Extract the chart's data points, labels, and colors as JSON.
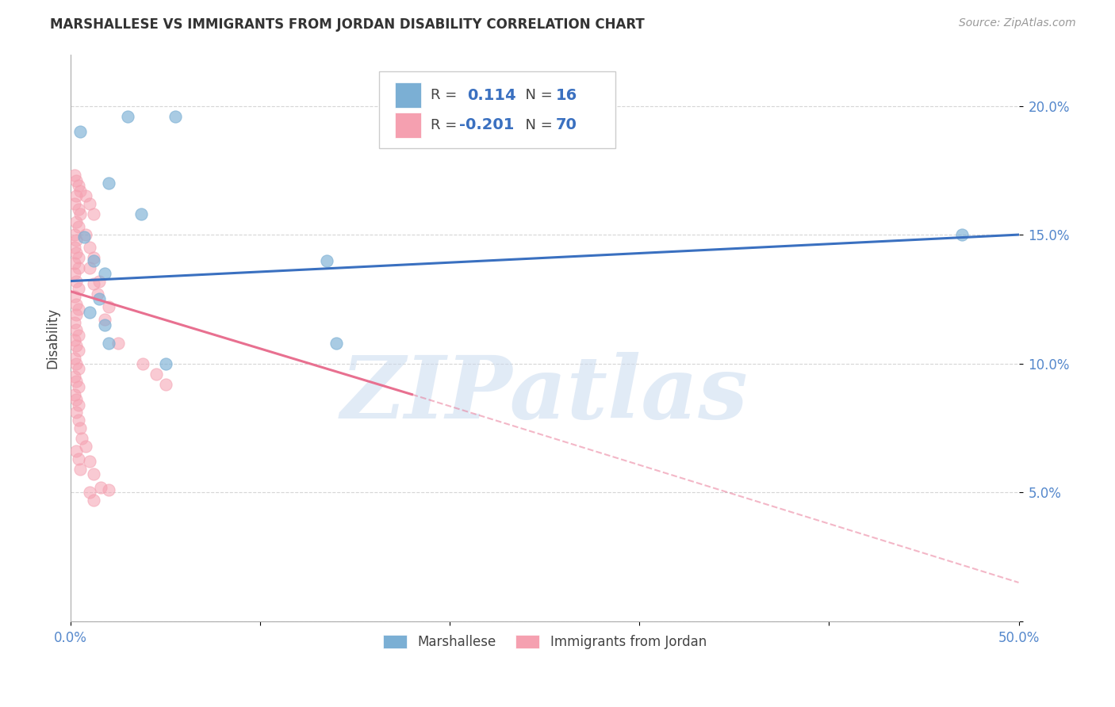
{
  "title": "MARSHALLESE VS IMMIGRANTS FROM JORDAN DISABILITY CORRELATION CHART",
  "source_text": "Source: ZipAtlas.com",
  "ylabel": "Disability",
  "xlim": [
    0.0,
    0.5
  ],
  "ylim": [
    0.0,
    0.22
  ],
  "yticks": [
    0.0,
    0.05,
    0.1,
    0.15,
    0.2
  ],
  "ytick_labels": [
    "",
    "5.0%",
    "10.0%",
    "15.0%",
    "20.0%"
  ],
  "xticks": [
    0.0,
    0.1,
    0.2,
    0.3,
    0.4,
    0.5
  ],
  "xtick_labels": [
    "0.0%",
    "",
    "",
    "",
    "",
    "50.0%"
  ],
  "blue_color": "#7BAFD4",
  "pink_color": "#F5A0B0",
  "blue_scatter": [
    [
      0.005,
      0.19
    ],
    [
      0.03,
      0.196
    ],
    [
      0.055,
      0.196
    ],
    [
      0.02,
      0.17
    ],
    [
      0.037,
      0.158
    ],
    [
      0.007,
      0.149
    ],
    [
      0.012,
      0.14
    ],
    [
      0.018,
      0.135
    ],
    [
      0.015,
      0.125
    ],
    [
      0.01,
      0.12
    ],
    [
      0.018,
      0.115
    ],
    [
      0.135,
      0.14
    ],
    [
      0.02,
      0.108
    ],
    [
      0.05,
      0.1
    ],
    [
      0.47,
      0.15
    ],
    [
      0.14,
      0.108
    ]
  ],
  "pink_scatter": [
    [
      0.002,
      0.173
    ],
    [
      0.003,
      0.171
    ],
    [
      0.004,
      0.169
    ],
    [
      0.005,
      0.167
    ],
    [
      0.003,
      0.165
    ],
    [
      0.002,
      0.162
    ],
    [
      0.004,
      0.16
    ],
    [
      0.005,
      0.158
    ],
    [
      0.003,
      0.155
    ],
    [
      0.004,
      0.153
    ],
    [
      0.002,
      0.15
    ],
    [
      0.003,
      0.148
    ],
    [
      0.002,
      0.145
    ],
    [
      0.003,
      0.143
    ],
    [
      0.004,
      0.141
    ],
    [
      0.002,
      0.139
    ],
    [
      0.004,
      0.137
    ],
    [
      0.002,
      0.135
    ],
    [
      0.003,
      0.132
    ],
    [
      0.004,
      0.129
    ],
    [
      0.002,
      0.126
    ],
    [
      0.003,
      0.123
    ],
    [
      0.004,
      0.121
    ],
    [
      0.003,
      0.119
    ],
    [
      0.002,
      0.116
    ],
    [
      0.003,
      0.113
    ],
    [
      0.004,
      0.111
    ],
    [
      0.002,
      0.109
    ],
    [
      0.003,
      0.107
    ],
    [
      0.004,
      0.105
    ],
    [
      0.002,
      0.102
    ],
    [
      0.003,
      0.1
    ],
    [
      0.004,
      0.098
    ],
    [
      0.002,
      0.095
    ],
    [
      0.003,
      0.093
    ],
    [
      0.004,
      0.091
    ],
    [
      0.002,
      0.088
    ],
    [
      0.003,
      0.086
    ],
    [
      0.004,
      0.084
    ],
    [
      0.008,
      0.165
    ],
    [
      0.01,
      0.162
    ],
    [
      0.012,
      0.158
    ],
    [
      0.008,
      0.15
    ],
    [
      0.01,
      0.145
    ],
    [
      0.012,
      0.141
    ],
    [
      0.015,
      0.132
    ],
    [
      0.02,
      0.122
    ],
    [
      0.01,
      0.137
    ],
    [
      0.012,
      0.131
    ],
    [
      0.014,
      0.127
    ],
    [
      0.018,
      0.117
    ],
    [
      0.025,
      0.108
    ],
    [
      0.038,
      0.1
    ],
    [
      0.045,
      0.096
    ],
    [
      0.05,
      0.092
    ],
    [
      0.003,
      0.081
    ],
    [
      0.004,
      0.078
    ],
    [
      0.005,
      0.075
    ],
    [
      0.006,
      0.071
    ],
    [
      0.008,
      0.068
    ],
    [
      0.01,
      0.062
    ],
    [
      0.012,
      0.057
    ],
    [
      0.016,
      0.052
    ],
    [
      0.02,
      0.051
    ],
    [
      0.003,
      0.066
    ],
    [
      0.004,
      0.063
    ],
    [
      0.005,
      0.059
    ],
    [
      0.01,
      0.05
    ],
    [
      0.012,
      0.047
    ]
  ],
  "blue_line": [
    [
      0.0,
      0.132
    ],
    [
      0.5,
      0.15
    ]
  ],
  "pink_line_solid": [
    [
      0.0,
      0.128
    ],
    [
      0.18,
      0.088
    ]
  ],
  "pink_line_dash": [
    [
      0.18,
      0.088
    ],
    [
      0.5,
      0.015
    ]
  ],
  "watermark_text": "ZIPatlas",
  "watermark_color": "#C5D8EE",
  "grid_color": "#BBBBBB"
}
